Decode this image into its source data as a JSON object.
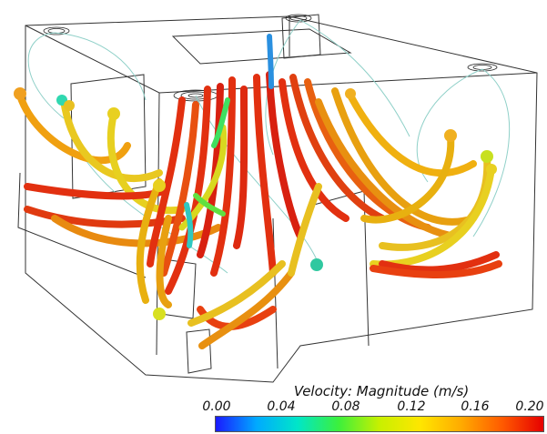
{
  "scalar_bar": {
    "title": "Velocity: Magnitude (m/s)",
    "range": [
      0.0,
      0.2
    ],
    "ticks": [
      "0.00",
      "0.04",
      "0.08",
      "0.12",
      "0.16",
      "0.20"
    ],
    "colormap": [
      "#1a1aff",
      "#00aaff",
      "#00e6c8",
      "#3cf03c",
      "#c8f000",
      "#ffe600",
      "#ffaa00",
      "#ff5a00",
      "#e60000"
    ]
  },
  "colors": {
    "outline": "#333333",
    "thin_line": "#8fd0c8",
    "background": "#ffffff"
  }
}
